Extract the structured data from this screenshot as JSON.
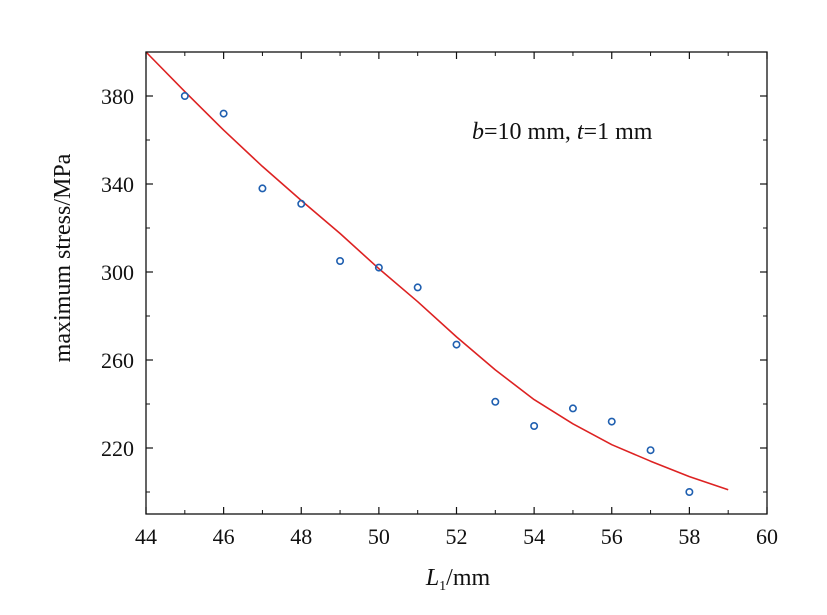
{
  "chart_data": {
    "type": "scatter",
    "xlabel_main": "L",
    "xlabel_sub": "1",
    "xlabel_unit": "/mm",
    "ylabel": "maximum stress/MPa",
    "xlim": [
      44,
      60
    ],
    "ylim": [
      190,
      400
    ],
    "x_ticks": [
      44,
      46,
      48,
      50,
      52,
      54,
      56,
      58,
      60
    ],
    "y_ticks": [
      220,
      260,
      300,
      340,
      380
    ],
    "annotation": {
      "b_var": "b",
      "b_val": "=10 mm, ",
      "t_var": "t",
      "t_val": "=1 mm"
    },
    "grid": false,
    "series": [
      {
        "kind": "points",
        "color": "#1f5fb0",
        "x": [
          45,
          46,
          47,
          48,
          49,
          50,
          51,
          52,
          53,
          54,
          55,
          56,
          57,
          58
        ],
        "y": [
          380,
          372,
          338,
          331,
          305,
          302,
          293,
          267,
          241,
          230,
          238,
          232,
          219,
          200
        ]
      },
      {
        "kind": "fit",
        "color": "#dd2222",
        "x": [
          44,
          45,
          46,
          47,
          48,
          49,
          50,
          51,
          52,
          53,
          54,
          55,
          56,
          57,
          58,
          59
        ],
        "y": [
          400,
          382,
          364.5,
          348,
          332.5,
          317.5,
          301.5,
          286.5,
          270.5,
          255.5,
          242,
          231,
          221.5,
          214,
          207,
          201
        ]
      }
    ]
  }
}
